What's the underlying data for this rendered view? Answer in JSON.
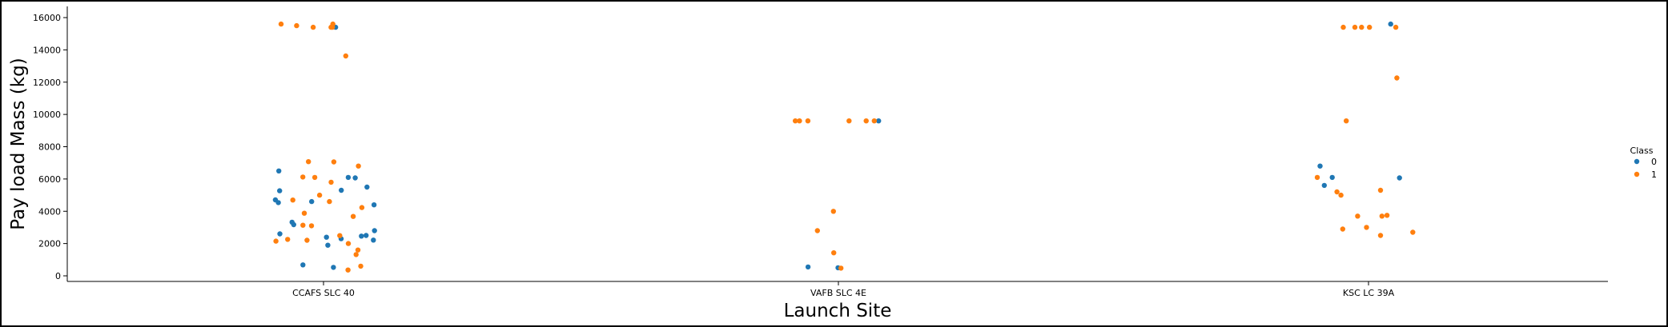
{
  "chart_data": {
    "type": "scatter",
    "title": "",
    "xlabel": "Launch Site",
    "ylabel": "Pay load Mass (kg)",
    "categories": [
      "CCAFS SLC 40",
      "VAFB SLC 4E",
      "KSC LC 39A"
    ],
    "ylim": [
      -300,
      16400
    ],
    "yticks": [
      0,
      2000,
      4000,
      6000,
      8000,
      10000,
      12000,
      14000,
      16000
    ],
    "grid": false,
    "legend": {
      "title": "Class",
      "placement": "right",
      "entries": [
        {
          "label": "0",
          "color": "#1f77b4"
        },
        {
          "label": "1",
          "color": "#ff7f0e"
        }
      ]
    },
    "series": [
      {
        "class": "0",
        "color": "#1f77b4",
        "points": [
          {
            "category": "CCAFS SLC 40",
            "y": 525
          },
          {
            "category": "CCAFS SLC 40",
            "y": 677
          },
          {
            "category": "CCAFS SLC 40",
            "y": 1898
          },
          {
            "category": "CCAFS SLC 40",
            "y": 2216
          },
          {
            "category": "CCAFS SLC 40",
            "y": 2296
          },
          {
            "category": "CCAFS SLC 40",
            "y": 2395
          },
          {
            "category": "CCAFS SLC 40",
            "y": 2460
          },
          {
            "category": "CCAFS SLC 40",
            "y": 2500
          },
          {
            "category": "CCAFS SLC 40",
            "y": 2600
          },
          {
            "category": "CCAFS SLC 40",
            "y": 2800
          },
          {
            "category": "CCAFS SLC 40",
            "y": 3170
          },
          {
            "category": "CCAFS SLC 40",
            "y": 3325
          },
          {
            "category": "CCAFS SLC 40",
            "y": 4400
          },
          {
            "category": "CCAFS SLC 40",
            "y": 4535
          },
          {
            "category": "CCAFS SLC 40",
            "y": 4600
          },
          {
            "category": "CCAFS SLC 40",
            "y": 4707
          },
          {
            "category": "CCAFS SLC 40",
            "y": 5271
          },
          {
            "category": "CCAFS SLC 40",
            "y": 5300
          },
          {
            "category": "CCAFS SLC 40",
            "y": 5500
          },
          {
            "category": "CCAFS SLC 40",
            "y": 6070
          },
          {
            "category": "CCAFS SLC 40",
            "y": 6100
          },
          {
            "category": "CCAFS SLC 40",
            "y": 6500
          },
          {
            "category": "CCAFS SLC 40",
            "y": 15400
          },
          {
            "category": "VAFB SLC 4E",
            "y": 500
          },
          {
            "category": "VAFB SLC 4E",
            "y": 550
          },
          {
            "category": "VAFB SLC 4E",
            "y": 9600
          },
          {
            "category": "KSC LC 39A",
            "y": 5600
          },
          {
            "category": "KSC LC 39A",
            "y": 6070
          },
          {
            "category": "KSC LC 39A",
            "y": 6100
          },
          {
            "category": "KSC LC 39A",
            "y": 6800
          },
          {
            "category": "KSC LC 39A",
            "y": 15600
          }
        ]
      },
      {
        "class": "1",
        "color": "#ff7f0e",
        "points": [
          {
            "category": "CCAFS SLC 40",
            "y": 362
          },
          {
            "category": "CCAFS SLC 40",
            "y": 600
          },
          {
            "category": "CCAFS SLC 40",
            "y": 1316
          },
          {
            "category": "CCAFS SLC 40",
            "y": 1600
          },
          {
            "category": "CCAFS SLC 40",
            "y": 2000
          },
          {
            "category": "CCAFS SLC 40",
            "y": 2150
          },
          {
            "category": "CCAFS SLC 40",
            "y": 2205
          },
          {
            "category": "CCAFS SLC 40",
            "y": 2257
          },
          {
            "category": "CCAFS SLC 40",
            "y": 2490
          },
          {
            "category": "CCAFS SLC 40",
            "y": 3100
          },
          {
            "category": "CCAFS SLC 40",
            "y": 3136
          },
          {
            "category": "CCAFS SLC 40",
            "y": 3681
          },
          {
            "category": "CCAFS SLC 40",
            "y": 3880
          },
          {
            "category": "CCAFS SLC 40",
            "y": 4230
          },
          {
            "category": "CCAFS SLC 40",
            "y": 4600
          },
          {
            "category": "CCAFS SLC 40",
            "y": 4696
          },
          {
            "category": "CCAFS SLC 40",
            "y": 5000
          },
          {
            "category": "CCAFS SLC 40",
            "y": 5800
          },
          {
            "category": "CCAFS SLC 40",
            "y": 6100
          },
          {
            "category": "CCAFS SLC 40",
            "y": 6123
          },
          {
            "category": "CCAFS SLC 40",
            "y": 6800
          },
          {
            "category": "CCAFS SLC 40",
            "y": 7060
          },
          {
            "category": "CCAFS SLC 40",
            "y": 7076
          },
          {
            "category": "CCAFS SLC 40",
            "y": 13620
          },
          {
            "category": "CCAFS SLC 40",
            "y": 15400
          },
          {
            "category": "CCAFS SLC 40",
            "y": 15400
          },
          {
            "category": "CCAFS SLC 40",
            "y": 15400
          },
          {
            "category": "CCAFS SLC 40",
            "y": 15500
          },
          {
            "category": "CCAFS SLC 40",
            "y": 15600
          },
          {
            "category": "CCAFS SLC 40",
            "y": 15600
          },
          {
            "category": "VAFB SLC 4E",
            "y": 475
          },
          {
            "category": "VAFB SLC 4E",
            "y": 1425
          },
          {
            "category": "VAFB SLC 4E",
            "y": 2800
          },
          {
            "category": "VAFB SLC 4E",
            "y": 4000
          },
          {
            "category": "VAFB SLC 4E",
            "y": 9600
          },
          {
            "category": "VAFB SLC 4E",
            "y": 9600
          },
          {
            "category": "VAFB SLC 4E",
            "y": 9600
          },
          {
            "category": "VAFB SLC 4E",
            "y": 9600
          },
          {
            "category": "VAFB SLC 4E",
            "y": 9600
          },
          {
            "category": "VAFB SLC 4E",
            "y": 9600
          },
          {
            "category": "KSC LC 39A",
            "y": 2500
          },
          {
            "category": "KSC LC 39A",
            "y": 2700
          },
          {
            "category": "KSC LC 39A",
            "y": 2900
          },
          {
            "category": "KSC LC 39A",
            "y": 3000
          },
          {
            "category": "KSC LC 39A",
            "y": 3700
          },
          {
            "category": "KSC LC 39A",
            "y": 3700
          },
          {
            "category": "KSC LC 39A",
            "y": 3750
          },
          {
            "category": "KSC LC 39A",
            "y": 5000
          },
          {
            "category": "KSC LC 39A",
            "y": 5200
          },
          {
            "category": "KSC LC 39A",
            "y": 5300
          },
          {
            "category": "KSC LC 39A",
            "y": 6100
          },
          {
            "category": "KSC LC 39A",
            "y": 9600
          },
          {
            "category": "KSC LC 39A",
            "y": 12259
          },
          {
            "category": "KSC LC 39A",
            "y": 15400
          },
          {
            "category": "KSC LC 39A",
            "y": 15400
          },
          {
            "category": "KSC LC 39A",
            "y": 15400
          },
          {
            "category": "KSC LC 39A",
            "y": 15400
          },
          {
            "category": "KSC LC 39A",
            "y": 15400
          }
        ]
      }
    ]
  }
}
